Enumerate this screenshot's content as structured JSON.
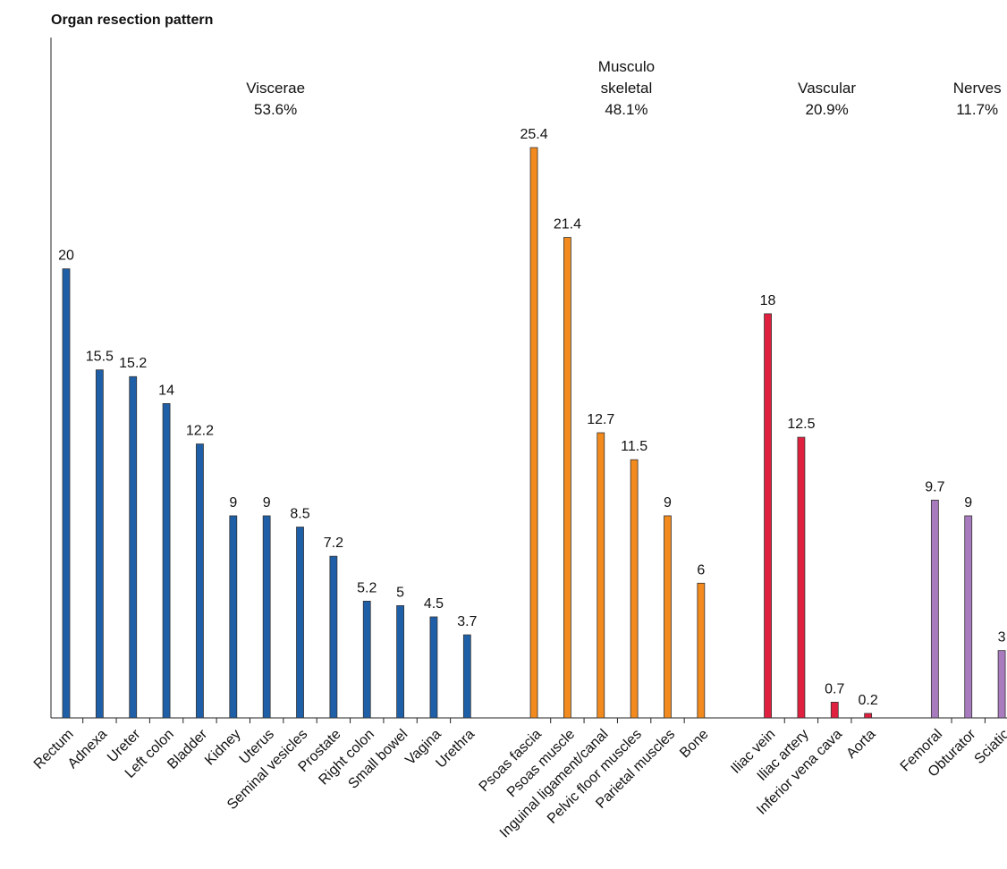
{
  "chart_data": {
    "type": "bar",
    "title": "Organ resection pattern",
    "ylim": [
      0,
      30.3
    ],
    "series": [
      {
        "name": "Viscerae",
        "share": "53.6%",
        "color": "#1f5fa8",
        "categories": [
          "Rectum",
          "Adnexa",
          "Ureter",
          "Left colon",
          "Bladder",
          "Kidney",
          "Uterus",
          "Seminal vesicles",
          "Prostate",
          "Right colon",
          "Small bowel",
          "Vagina",
          "Urethra"
        ],
        "values": [
          20,
          15.5,
          15.2,
          14,
          12.2,
          9,
          9,
          8.5,
          7.2,
          5.2,
          5,
          4.5,
          3.7
        ]
      },
      {
        "name": "Musculo skeletal",
        "share": "48.1%",
        "color": "#f28a1e",
        "categories": [
          "Psoas fascia",
          "Psoas muscle",
          "Inguinal ligament/canal",
          "Pelvic floor muscles",
          "Parietal muscles",
          "Bone"
        ],
        "values": [
          25.4,
          21.4,
          12.7,
          11.5,
          9,
          6
        ]
      },
      {
        "name": "Vascular",
        "share": "20.9%",
        "color": "#e0203f",
        "categories": [
          "Iliac vein",
          "Iliac artery",
          "Inferior vena cava",
          "Aorta"
        ],
        "values": [
          18,
          12.5,
          0.7,
          0.2
        ]
      },
      {
        "name": "Nerves",
        "share": "11.7%",
        "color": "#a77bbd",
        "categories": [
          "Femoral",
          "Obturator",
          "Sciatic"
        ],
        "values": [
          9.7,
          9,
          3
        ]
      }
    ]
  }
}
